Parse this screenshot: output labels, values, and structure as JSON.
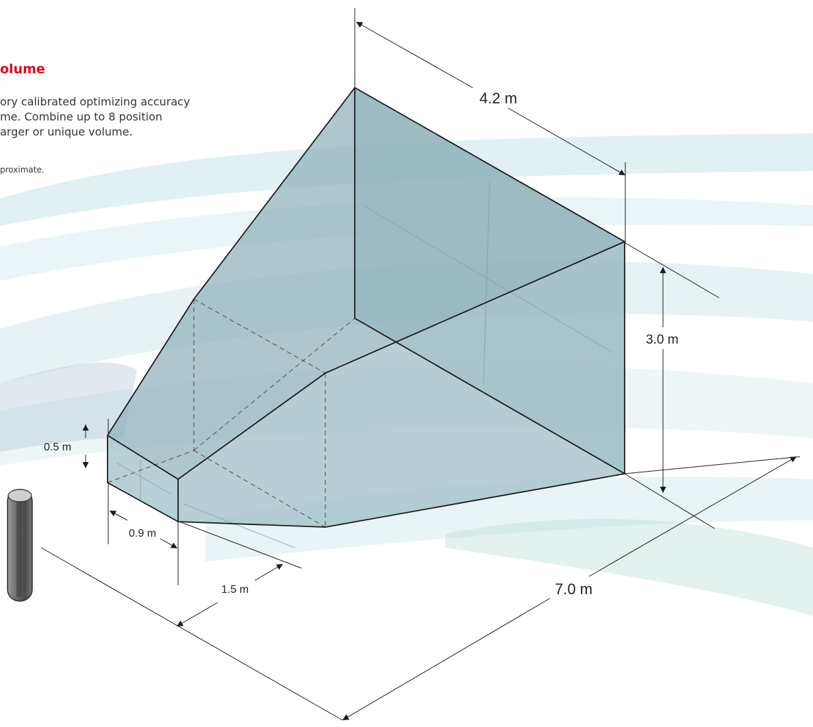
{
  "heading": "olume",
  "description": [
    "ory calibrated optimizing accuracy",
    "me. Combine up to 8 position",
    "arger or unique volume."
  ],
  "note": "proximate.",
  "dimensions": {
    "length_top": "4.2 m",
    "height_back": "3.0 m",
    "length_total": "7.0 m",
    "height_front": "0.5 m",
    "width_front": "0.9 m",
    "offset": "1.5 m"
  },
  "colors": {
    "heading": "#e30613",
    "volume_fill": "#8fb2ba",
    "edge": "#1a1a1a",
    "sensor": "#6d6d6d"
  }
}
